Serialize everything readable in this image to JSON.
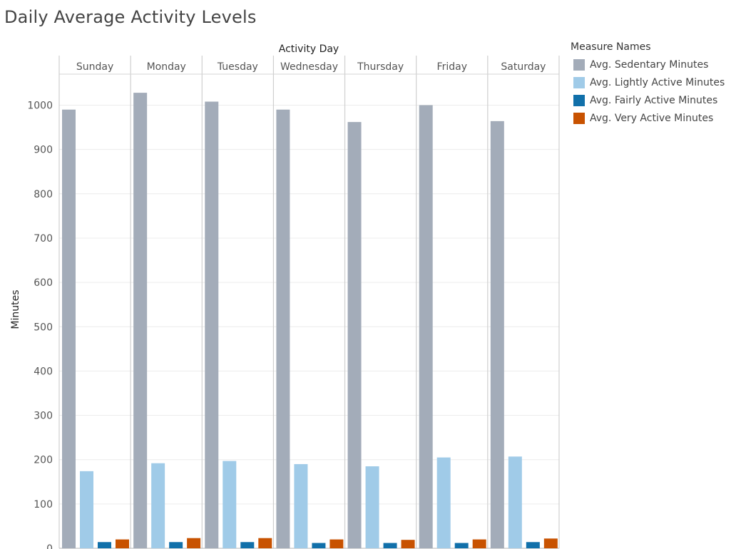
{
  "chart_data": {
    "type": "bar",
    "title": "Daily Average Activity Levels",
    "column_header": "Activity Day",
    "ylabel": "Minutes",
    "ylim": [
      0,
      1070
    ],
    "yticks": [
      0,
      100,
      200,
      300,
      400,
      500,
      600,
      700,
      800,
      900,
      1000
    ],
    "grid": true,
    "legend_title": "Measure Names",
    "legend_position": "right",
    "categories": [
      "Sunday",
      "Monday",
      "Tuesday",
      "Wednesday",
      "Thursday",
      "Friday",
      "Saturday"
    ],
    "series": [
      {
        "name": "Avg. Sedentary Minutes",
        "color": "#a3acb9",
        "values": [
          990,
          1028,
          1008,
          990,
          962,
          1000,
          964
        ]
      },
      {
        "name": "Avg. Lightly Active Minutes",
        "color": "#a0cbe8",
        "values": [
          174,
          192,
          197,
          190,
          185,
          205,
          207
        ]
      },
      {
        "name": "Avg. Fairly Active Minutes",
        "color": "#1170aa",
        "values": [
          14,
          14,
          14,
          12,
          12,
          12,
          14
        ]
      },
      {
        "name": "Avg. Very Active Minutes",
        "color": "#c85200",
        "values": [
          20,
          23,
          23,
          20,
          19,
          20,
          22
        ]
      }
    ]
  }
}
